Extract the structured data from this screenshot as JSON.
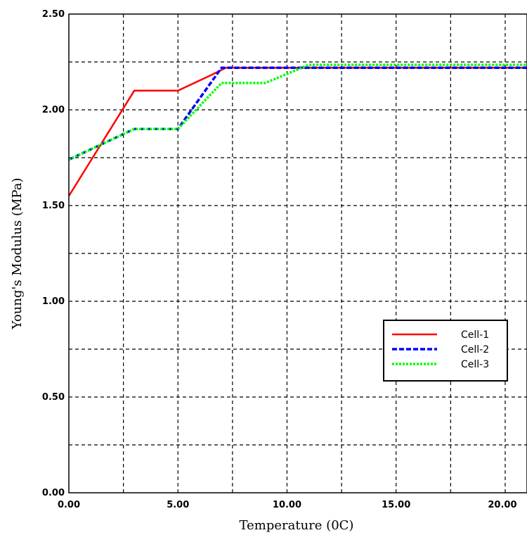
{
  "chart_data": {
    "type": "line",
    "xlabel": "Temperature (0C)",
    "ylabel": "Young's Modulus (MPa)",
    "xlim": [
      0,
      21
    ],
    "ylim": [
      0,
      2.5
    ],
    "xticks": [
      0,
      5,
      10,
      15,
      20
    ],
    "xtick_labels": [
      "0.00",
      "5.00",
      "10.00",
      "15.00",
      "20.00"
    ],
    "yticks": [
      0,
      0.5,
      1.0,
      1.5,
      2.0,
      2.5
    ],
    "ytick_labels": [
      "0.00",
      "0.50",
      "1.00",
      "1.50",
      "2.00",
      "2.50"
    ],
    "grid": true,
    "legend_position": "lower-right",
    "series": [
      {
        "name": "Cell-1",
        "color": "#ff0000",
        "style": "solid",
        "points": [
          [
            0,
            1.55
          ],
          [
            3,
            2.1
          ],
          [
            5,
            2.1
          ],
          [
            6.5,
            2.18
          ],
          [
            7.2,
            2.22
          ],
          [
            21,
            2.22
          ]
        ]
      },
      {
        "name": "Cell-2",
        "color": "#0000ff",
        "style": "dashed",
        "points": [
          [
            0,
            1.74
          ],
          [
            3,
            1.9
          ],
          [
            5,
            1.9
          ],
          [
            7,
            2.22
          ],
          [
            21,
            2.22
          ]
        ]
      },
      {
        "name": "Cell-3",
        "color": "#00ff00",
        "style": "dotted",
        "points": [
          [
            0,
            1.74
          ],
          [
            3,
            1.9
          ],
          [
            5,
            1.9
          ],
          [
            7,
            2.14
          ],
          [
            9,
            2.14
          ],
          [
            11,
            2.235
          ],
          [
            21,
            2.235
          ]
        ]
      }
    ]
  }
}
